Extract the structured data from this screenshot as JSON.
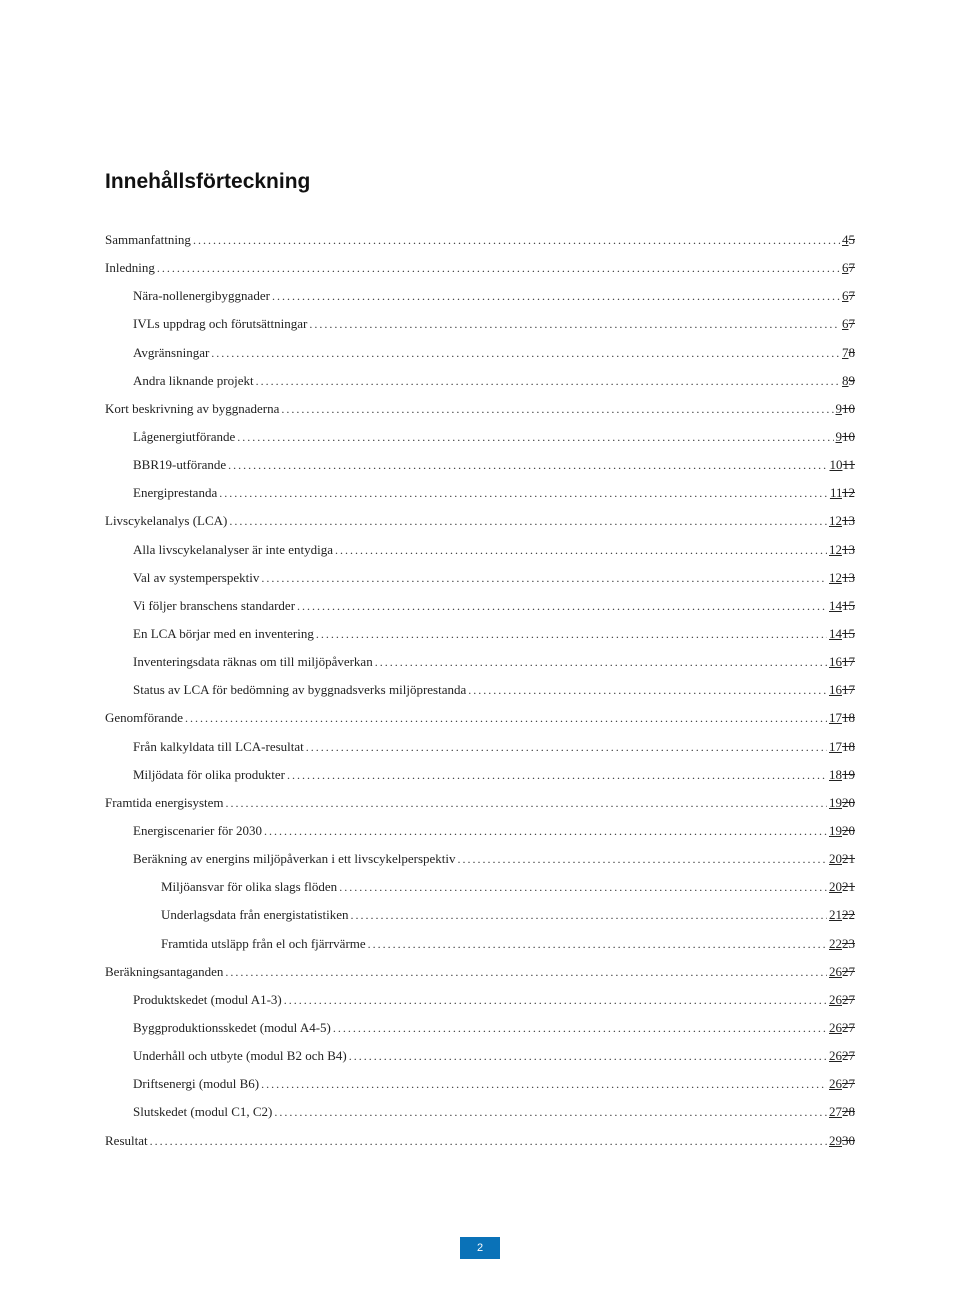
{
  "title": "Innehållsförteckning",
  "page_number": "2",
  "page_badge_bg": "#0a72b8",
  "page_badge_fg": "#ffffff",
  "entries": [
    {
      "label": "Sammanfattning",
      "indent": 0,
      "new": "4",
      "old": "5"
    },
    {
      "label": "Inledning",
      "indent": 0,
      "new": "6",
      "old": "7"
    },
    {
      "label": "Nära-nollenergibyggnader",
      "indent": 1,
      "new": "6",
      "old": "7"
    },
    {
      "label": "IVLs uppdrag och förutsättningar",
      "indent": 1,
      "new": "6",
      "old": "7"
    },
    {
      "label": "Avgränsningar",
      "indent": 1,
      "new": "7",
      "old": "8"
    },
    {
      "label": "Andra liknande projekt",
      "indent": 1,
      "new": "8",
      "old": "9"
    },
    {
      "label": "Kort beskrivning av byggnaderna",
      "indent": 0,
      "new": "9",
      "old": "10"
    },
    {
      "label": "Lågenergiutförande",
      "indent": 1,
      "new": "9",
      "old": "10"
    },
    {
      "label": "BBR19-utförande",
      "indent": 1,
      "new": "10",
      "old": "11"
    },
    {
      "label": "Energiprestanda",
      "indent": 1,
      "new": "11",
      "old": "12"
    },
    {
      "label": "Livscykelanalys (LCA)",
      "indent": 0,
      "new": "12",
      "old": "13"
    },
    {
      "label": "Alla livscykelanalyser är inte entydiga",
      "indent": 1,
      "new": "12",
      "old": "13"
    },
    {
      "label": "Val av systemperspektiv",
      "indent": 1,
      "new": "12",
      "old": "13"
    },
    {
      "label": "Vi följer branschens standarder",
      "indent": 1,
      "new": "14",
      "old": "15"
    },
    {
      "label": "En LCA börjar med en inventering",
      "indent": 1,
      "new": "14",
      "old": "15"
    },
    {
      "label": "Inventeringsdata räknas om till miljöpåverkan",
      "indent": 1,
      "new": "16",
      "old": "17"
    },
    {
      "label": "Status av LCA för bedömning av byggnadsverks miljöprestanda",
      "indent": 1,
      "new": "16",
      "old": "17"
    },
    {
      "label": "Genomförande",
      "indent": 0,
      "new": "17",
      "old": "18"
    },
    {
      "label": "Från kalkyldata till LCA-resultat",
      "indent": 1,
      "new": "17",
      "old": "18"
    },
    {
      "label": "Miljödata för olika produkter",
      "indent": 1,
      "new": "18",
      "old": "19"
    },
    {
      "label": "Framtida energisystem",
      "indent": 0,
      "new": "19",
      "old": "20"
    },
    {
      "label": "Energiscenarier för 2030",
      "indent": 1,
      "new": "19",
      "old": "20"
    },
    {
      "label": "Beräkning av energins miljöpåverkan i ett livscykelperspektiv",
      "indent": 1,
      "new": "20",
      "old": "21"
    },
    {
      "label": "Miljöansvar för olika slags flöden",
      "indent": 2,
      "new": "20",
      "old": "21"
    },
    {
      "label": "Underlagsdata från energistatistiken",
      "indent": 2,
      "new": "21",
      "old": "22"
    },
    {
      "label": "Framtida utsläpp från el och fjärrvärme",
      "indent": 2,
      "new": "22",
      "old": "23"
    },
    {
      "label": "Beräkningsantaganden",
      "indent": 0,
      "new": "26",
      "old": "27"
    },
    {
      "label": "Produktskedet (modul A1-3)",
      "indent": 1,
      "new": "26",
      "old": "27"
    },
    {
      "label": "Byggproduktionsskedet (modul A4-5)",
      "indent": 1,
      "new": "26",
      "old": "27"
    },
    {
      "label": "Underhåll och utbyte (modul B2 och B4)",
      "indent": 1,
      "new": "26",
      "old": "27"
    },
    {
      "label": "Driftsenergi (modul B6)",
      "indent": 1,
      "new": "26",
      "old": "27"
    },
    {
      "label": "Slutskedet (modul C1, C2)",
      "indent": 1,
      "new": "27",
      "old": "28"
    },
    {
      "label": "Resultat",
      "indent": 0,
      "new": "29",
      "old": "30"
    }
  ]
}
